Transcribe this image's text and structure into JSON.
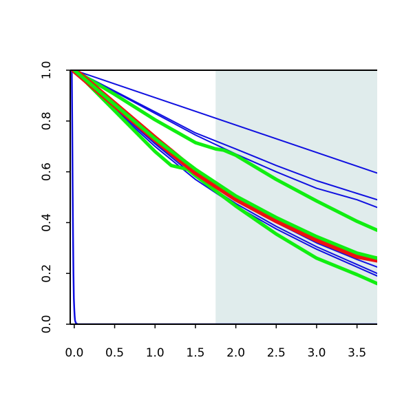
{
  "chart_data": {
    "type": "line",
    "title": "",
    "xlabel": "",
    "ylabel": "",
    "xlim": [
      -0.05,
      3.75
    ],
    "ylim": [
      0.0,
      1.0
    ],
    "grid": false,
    "legend": "none",
    "x_ticks": [
      0.0,
      0.5,
      1.0,
      1.5,
      2.0,
      2.5,
      3.0,
      3.5
    ],
    "x_tick_labels": [
      "0.0",
      "0.5",
      "1.0",
      "1.5",
      "2.0",
      "2.5",
      "3.0",
      "3.5"
    ],
    "y_ticks": [
      0.0,
      0.2,
      0.4,
      0.6,
      0.8,
      1.0
    ],
    "y_tick_labels": [
      "0.0",
      "0.2",
      "0.4",
      "0.6",
      "0.8",
      "1.0"
    ],
    "shaded_region": {
      "x": [
        1.75,
        3.75
      ],
      "color": "#e0ecec"
    },
    "colors": {
      "blue": "#1010e0",
      "green": "#11ee11",
      "red": "#ee1111",
      "axis": "#000000"
    },
    "series": [
      {
        "color": "blue",
        "width": 2,
        "x": [
          0.0,
          3.75
        ],
        "y": [
          1.0,
          0.595
        ]
      },
      {
        "color": "blue",
        "width": 2,
        "x": [
          0.0,
          0.5,
          1.0,
          1.5,
          2.0,
          2.5,
          3.0,
          3.5,
          3.75
        ],
        "y": [
          1.0,
          0.918,
          0.836,
          0.753,
          0.69,
          0.625,
          0.565,
          0.515,
          0.49
        ]
      },
      {
        "color": "blue",
        "width": 2,
        "x": [
          0.0,
          0.5,
          1.0,
          1.5,
          2.0,
          2.5,
          3.0,
          3.5,
          3.75
        ],
        "y": [
          1.0,
          0.915,
          0.83,
          0.745,
          0.67,
          0.6,
          0.535,
          0.49,
          0.46
        ]
      },
      {
        "color": "blue",
        "width": 2,
        "x": [
          0.0,
          0.5,
          1.0,
          1.5,
          2.0,
          2.5,
          3.0,
          3.5,
          3.75
        ],
        "y": [
          1.0,
          0.86,
          0.72,
          0.6,
          0.5,
          0.415,
          0.34,
          0.275,
          0.25
        ]
      },
      {
        "color": "blue",
        "width": 2,
        "x": [
          0.0,
          0.5,
          1.0,
          1.5,
          2.0,
          2.5,
          3.0,
          3.5,
          3.75
        ],
        "y": [
          1.0,
          0.855,
          0.715,
          0.59,
          0.49,
          0.4,
          0.32,
          0.255,
          0.225
        ]
      },
      {
        "color": "blue",
        "width": 2,
        "x": [
          0.0,
          0.5,
          1.0,
          1.5,
          2.0,
          2.5,
          3.0,
          3.5,
          3.75
        ],
        "y": [
          1.0,
          0.85,
          0.71,
          0.58,
          0.475,
          0.385,
          0.305,
          0.235,
          0.2
        ]
      },
      {
        "color": "blue",
        "width": 2,
        "x": [
          0.0,
          0.5,
          1.0,
          1.5,
          2.0,
          2.5,
          3.0,
          3.5,
          3.75
        ],
        "y": [
          1.0,
          0.845,
          0.7,
          0.57,
          0.465,
          0.375,
          0.295,
          0.225,
          0.19
        ]
      },
      {
        "color": "blue",
        "width": 2.5,
        "x": [
          -0.03,
          -0.025,
          -0.02,
          -0.015,
          -0.01,
          -0.005,
          0.0,
          0.005,
          0.01,
          0.02,
          0.04,
          0.08,
          3.75
        ],
        "y": [
          1.0,
          0.8,
          0.55,
          0.35,
          0.2,
          0.1,
          0.06,
          0.03,
          0.015,
          0.005,
          0.0,
          0.0,
          0.0
        ]
      },
      {
        "color": "green",
        "width": 5,
        "x": [
          0.0,
          0.5,
          1.0,
          1.5,
          1.75,
          1.85,
          2.0,
          2.5,
          3.0,
          3.5,
          3.75
        ],
        "y": [
          1.0,
          0.905,
          0.805,
          0.715,
          0.69,
          0.685,
          0.665,
          0.57,
          0.485,
          0.405,
          0.37
        ]
      },
      {
        "color": "green",
        "width": 5,
        "x": [
          0.0,
          0.5,
          1.0,
          1.2,
          1.4,
          1.5,
          2.0,
          2.5,
          3.0,
          3.5,
          3.75
        ],
        "y": [
          1.0,
          0.84,
          0.68,
          0.625,
          0.61,
          0.585,
          0.465,
          0.355,
          0.26,
          0.195,
          0.16
        ]
      },
      {
        "color": "red",
        "width": 9,
        "x": [
          0.0,
          0.5,
          1.0,
          1.5,
          2.0,
          2.5,
          3.0,
          3.5,
          3.75
        ],
        "y": [
          1.0,
          0.865,
          0.73,
          0.6,
          0.495,
          0.41,
          0.335,
          0.27,
          0.255
        ]
      },
      {
        "color": "green",
        "width": 5,
        "x": [
          0.0,
          0.5,
          1.0,
          1.5,
          2.0,
          2.5,
          3.0,
          3.5,
          3.75
        ],
        "y": [
          1.0,
          0.865,
          0.73,
          0.61,
          0.505,
          0.42,
          0.345,
          0.28,
          0.26
        ]
      }
    ]
  }
}
